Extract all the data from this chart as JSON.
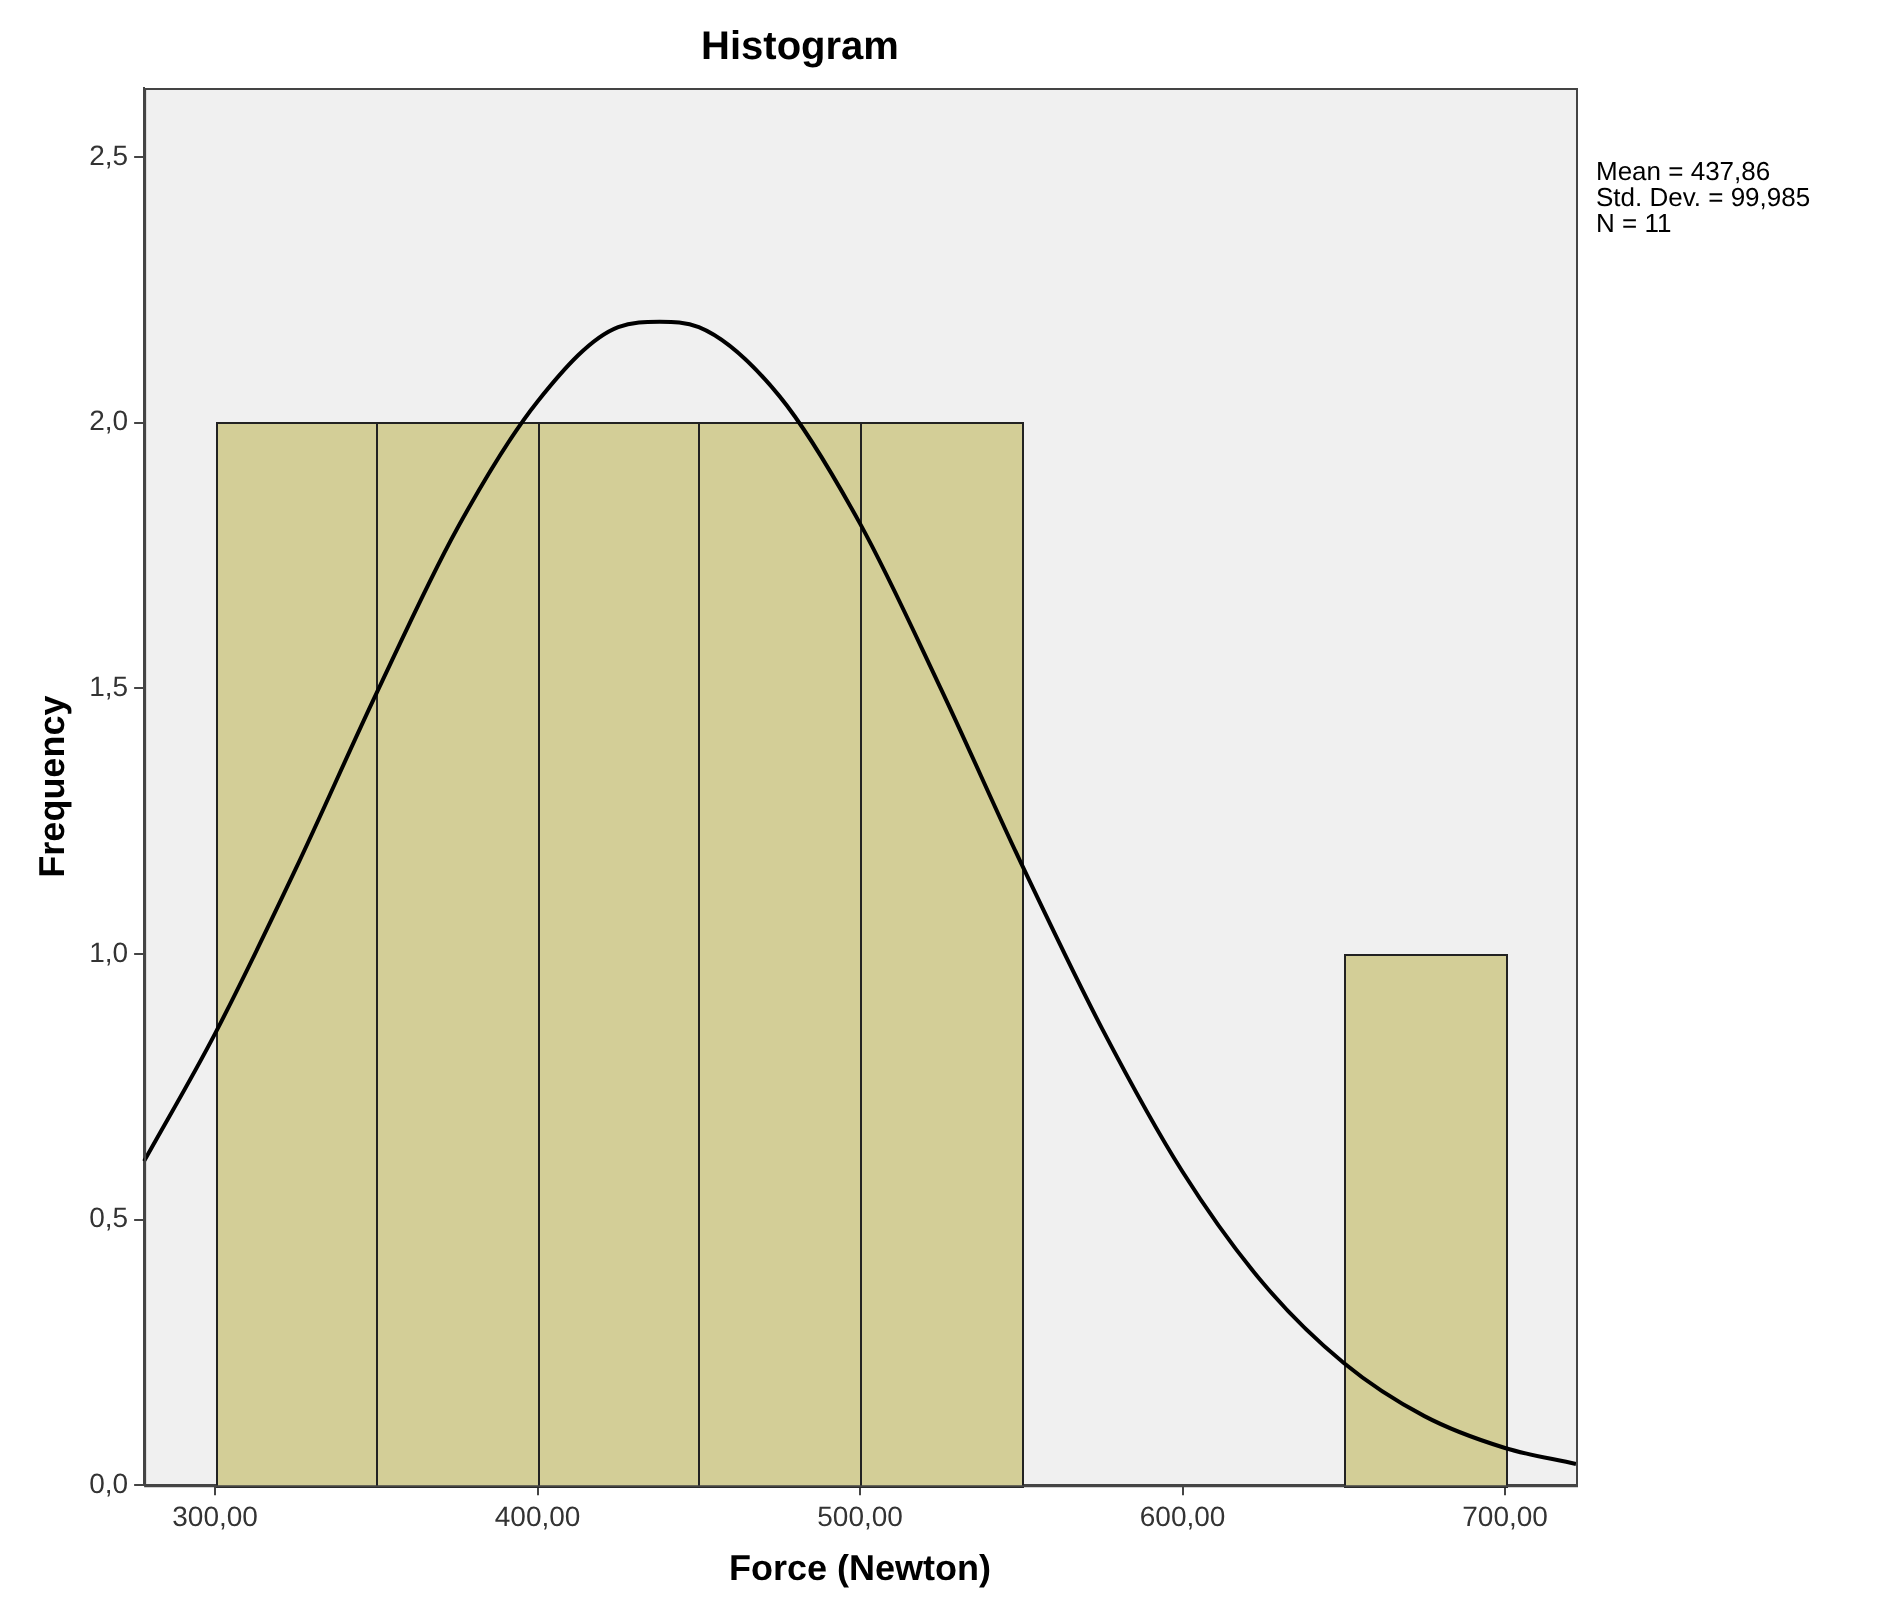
{
  "chart_data": {
    "type": "histogram",
    "title": "Histogram",
    "xlabel": "Force (Newton)",
    "ylabel": "Frequency",
    "bins": [
      300,
      350,
      400,
      450,
      500,
      550,
      600,
      650,
      700
    ],
    "values": [
      2,
      2,
      2,
      2,
      2,
      0,
      0,
      1
    ],
    "color": "#d3ce97",
    "series": [
      {
        "type": "line",
        "color": "#000000",
        "marker": "none",
        "x": [
          278,
          300,
          325,
          350,
          375,
          400,
          425,
          437.86,
          450,
          475,
          500,
          525,
          550,
          575,
          600,
          625,
          650,
          675,
          700,
          722
        ],
        "values": [
          0.61,
          0.85,
          1.16,
          1.49,
          1.8,
          2.04,
          2.18,
          2.19,
          2.18,
          2.05,
          1.81,
          1.5,
          1.17,
          0.86,
          0.59,
          0.38,
          0.23,
          0.13,
          0.07,
          0.04
        ]
      }
    ],
    "xlim": [
      278,
      722
    ],
    "xticks": [
      {
        "value": 300,
        "label": "300,00"
      },
      {
        "value": 400,
        "label": "400,00"
      },
      {
        "value": 500,
        "label": "500,00"
      },
      {
        "value": 600,
        "label": "600,00"
      },
      {
        "value": 700,
        "label": "700,00"
      }
    ],
    "ylim": [
      0,
      2.63
    ],
    "yticks": [
      {
        "value": 0,
        "label": "0,0"
      },
      {
        "value": 0.5,
        "label": "0,5"
      },
      {
        "value": 1,
        "label": "1,0"
      },
      {
        "value": 1.5,
        "label": "1,5"
      },
      {
        "value": 2,
        "label": "2,0"
      },
      {
        "value": 2.5,
        "label": "2,5"
      }
    ],
    "annotations": [
      "Mean = 437,86",
      "Std. Dev. = 99,985",
      "N = 11"
    ],
    "grid": false,
    "legend": false
  }
}
